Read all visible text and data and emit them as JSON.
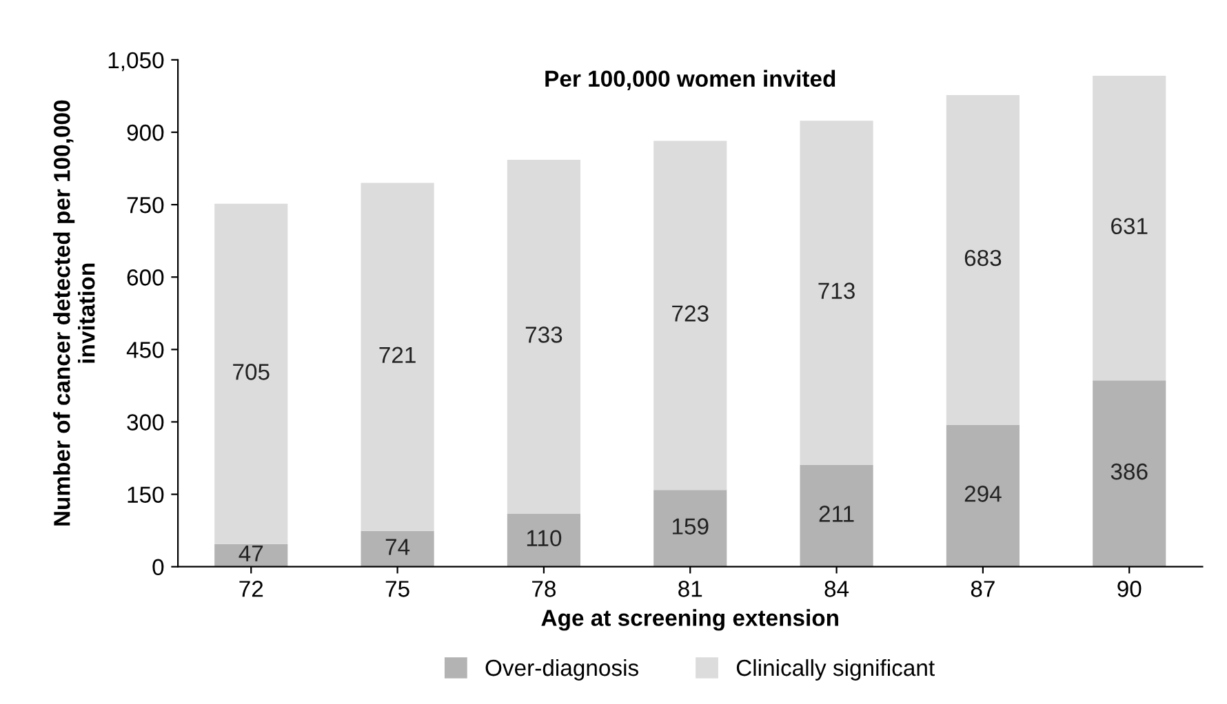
{
  "chart_data": {
    "type": "bar",
    "stacked": true,
    "title": "Per 100,000 women invited",
    "xlabel": "Age at screening extension",
    "ylabel": "Number of cancer detected per 100,000\ninvitation",
    "categories": [
      "72",
      "75",
      "78",
      "81",
      "84",
      "87",
      "90"
    ],
    "series": [
      {
        "name": "Over-diagnosis",
        "color": "#b3b3b3",
        "values": [
          47,
          74,
          110,
          159,
          211,
          294,
          386
        ]
      },
      {
        "name": "Clinically significant",
        "color": "#dcdcdc",
        "values": [
          705,
          721,
          733,
          723,
          713,
          683,
          631
        ]
      }
    ],
    "ylim": [
      0,
      1050
    ],
    "yticks": [
      0,
      150,
      300,
      450,
      600,
      750,
      900,
      {
        "value": 1050,
        "label": "1,050"
      }
    ],
    "data_labels": true,
    "legend": "bottom",
    "grid": false
  }
}
